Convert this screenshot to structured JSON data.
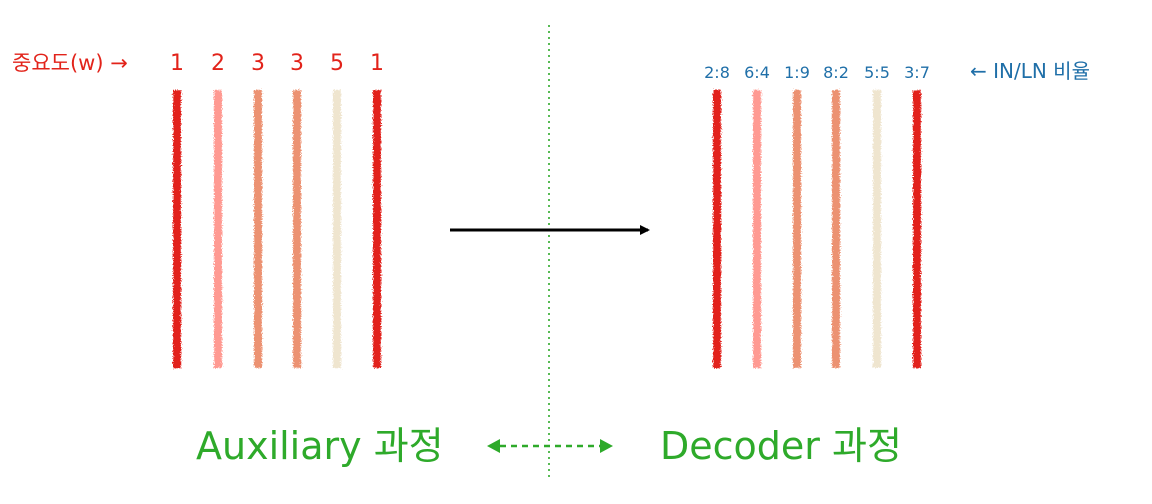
{
  "left": {
    "label": "중요도(w) →",
    "weights": [
      "1",
      "2",
      "3",
      "3",
      "5",
      "1"
    ],
    "caption": "Auxiliary 과정"
  },
  "right": {
    "label": "← IN/LN 비율",
    "ratios": [
      "2:8",
      "6:4",
      "1:9",
      "8:2",
      "5:5",
      "3:7"
    ],
    "caption": "Decoder 과정"
  },
  "colors": {
    "stripe_colors": [
      "#e2231a",
      "#ff9a92",
      "#ec9272",
      "#ec9272",
      "#efe5cf",
      "#e2231a"
    ],
    "label_red": "#e2231a",
    "label_blue": "#1f6fa8",
    "green": "#2eaa2a",
    "arrow": "#000000"
  }
}
